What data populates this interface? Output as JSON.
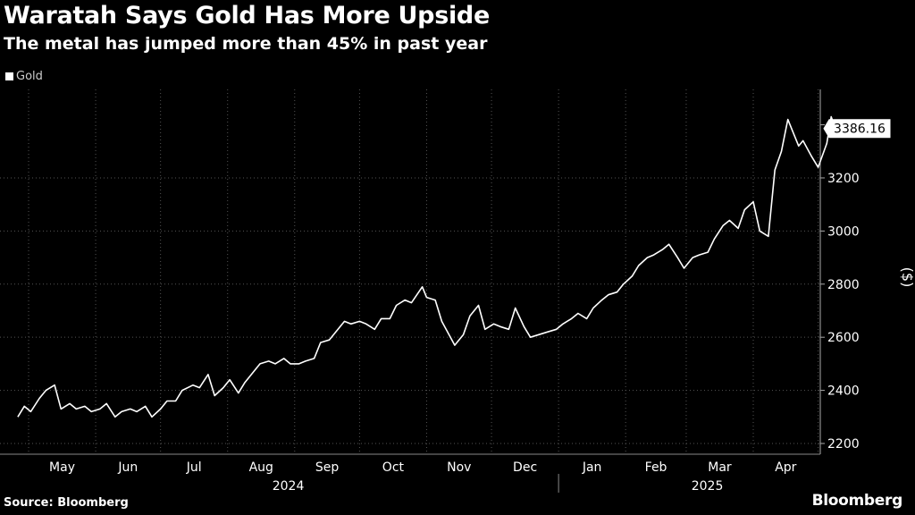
{
  "header": {
    "title": "Waratah Says Gold Has More Upside",
    "subtitle": "The metal has jumped more than 45% in past year"
  },
  "legend": {
    "label": "Gold"
  },
  "footer": {
    "source": "Source: Bloomberg",
    "brand": "Bloomberg"
  },
  "colors": {
    "background": "#000000",
    "line": "#ffffff",
    "grid": "#555555",
    "text": "#ffffff"
  },
  "chart_data": {
    "type": "line",
    "title": "Waratah Says Gold Has More Upside",
    "subtitle": "The metal has jumped more than 45% in past year",
    "ylabel": "($)",
    "xlabel": "",
    "ylim": [
      2200,
      3500
    ],
    "yticks": [
      2200,
      2400,
      2600,
      2800,
      3000,
      3200
    ],
    "grid": true,
    "legend_placement": "top-left",
    "month_ticks": [
      "May",
      "Jun",
      "Jul",
      "Aug",
      "Sep",
      "Oct",
      "Nov",
      "Dec",
      "Jan",
      "Feb",
      "Mar",
      "Apr"
    ],
    "year_labels": [
      "2024",
      "2025"
    ],
    "last_value_label": "3386.16",
    "series": [
      {
        "name": "Gold",
        "x": [
          "2024-04-26",
          "2024-04-29",
          "2024-05-02",
          "2024-05-06",
          "2024-05-09",
          "2024-05-13",
          "2024-05-16",
          "2024-05-20",
          "2024-05-23",
          "2024-05-27",
          "2024-05-30",
          "2024-06-03",
          "2024-06-06",
          "2024-06-10",
          "2024-06-13",
          "2024-06-17",
          "2024-06-20",
          "2024-06-24",
          "2024-06-27",
          "2024-07-01",
          "2024-07-04",
          "2024-07-08",
          "2024-07-11",
          "2024-07-16",
          "2024-07-19",
          "2024-07-23",
          "2024-07-26",
          "2024-07-30",
          "2024-08-02",
          "2024-08-06",
          "2024-08-09",
          "2024-08-13",
          "2024-08-16",
          "2024-08-20",
          "2024-08-23",
          "2024-08-27",
          "2024-08-30",
          "2024-09-03",
          "2024-09-06",
          "2024-09-10",
          "2024-09-13",
          "2024-09-17",
          "2024-09-20",
          "2024-09-24",
          "2024-09-27",
          "2024-10-01",
          "2024-10-04",
          "2024-10-08",
          "2024-10-11",
          "2024-10-15",
          "2024-10-18",
          "2024-10-22",
          "2024-10-25",
          "2024-10-30",
          "2024-11-01",
          "2024-11-05",
          "2024-11-08",
          "2024-11-12",
          "2024-11-14",
          "2024-11-18",
          "2024-11-21",
          "2024-11-25",
          "2024-11-28",
          "2024-12-02",
          "2024-12-05",
          "2024-12-09",
          "2024-12-12",
          "2024-12-16",
          "2024-12-19",
          "2024-12-23",
          "2024-12-27",
          "2024-12-31",
          "2025-01-03",
          "2025-01-07",
          "2025-01-10",
          "2025-01-14",
          "2025-01-17",
          "2025-01-21",
          "2025-01-24",
          "2025-01-28",
          "2025-01-31",
          "2025-02-04",
          "2025-02-07",
          "2025-02-11",
          "2025-02-14",
          "2025-02-18",
          "2025-02-21",
          "2025-02-25",
          "2025-02-28",
          "2025-03-04",
          "2025-03-07",
          "2025-03-11",
          "2025-03-14",
          "2025-03-18",
          "2025-03-21",
          "2025-03-25",
          "2025-03-28",
          "2025-04-01",
          "2025-04-04",
          "2025-04-08",
          "2025-04-11",
          "2025-04-14",
          "2025-04-17",
          "2025-04-22",
          "2025-04-24",
          "2025-04-28",
          "2025-05-01",
          "2025-05-05",
          "2025-05-07",
          "2025-05-09"
        ],
        "values": [
          2300,
          2340,
          2320,
          2370,
          2400,
          2420,
          2330,
          2350,
          2330,
          2340,
          2320,
          2330,
          2350,
          2300,
          2320,
          2330,
          2320,
          2340,
          2300,
          2330,
          2360,
          2360,
          2400,
          2420,
          2410,
          2460,
          2380,
          2410,
          2440,
          2390,
          2430,
          2470,
          2500,
          2510,
          2500,
          2520,
          2500,
          2500,
          2510,
          2520,
          2580,
          2590,
          2620,
          2660,
          2650,
          2660,
          2650,
          2630,
          2670,
          2670,
          2720,
          2740,
          2730,
          2790,
          2750,
          2740,
          2660,
          2600,
          2570,
          2610,
          2680,
          2720,
          2630,
          2650,
          2640,
          2630,
          2710,
          2640,
          2600,
          2610,
          2620,
          2630,
          2650,
          2670,
          2690,
          2670,
          2710,
          2740,
          2760,
          2770,
          2800,
          2830,
          2870,
          2900,
          2910,
          2930,
          2950,
          2900,
          2860,
          2900,
          2910,
          2920,
          2970,
          3020,
          3040,
          3010,
          3080,
          3110,
          3000,
          2980,
          3230,
          3300,
          3420,
          3320,
          3340,
          3280,
          3240,
          3330,
          3430,
          3386
        ]
      }
    ]
  }
}
